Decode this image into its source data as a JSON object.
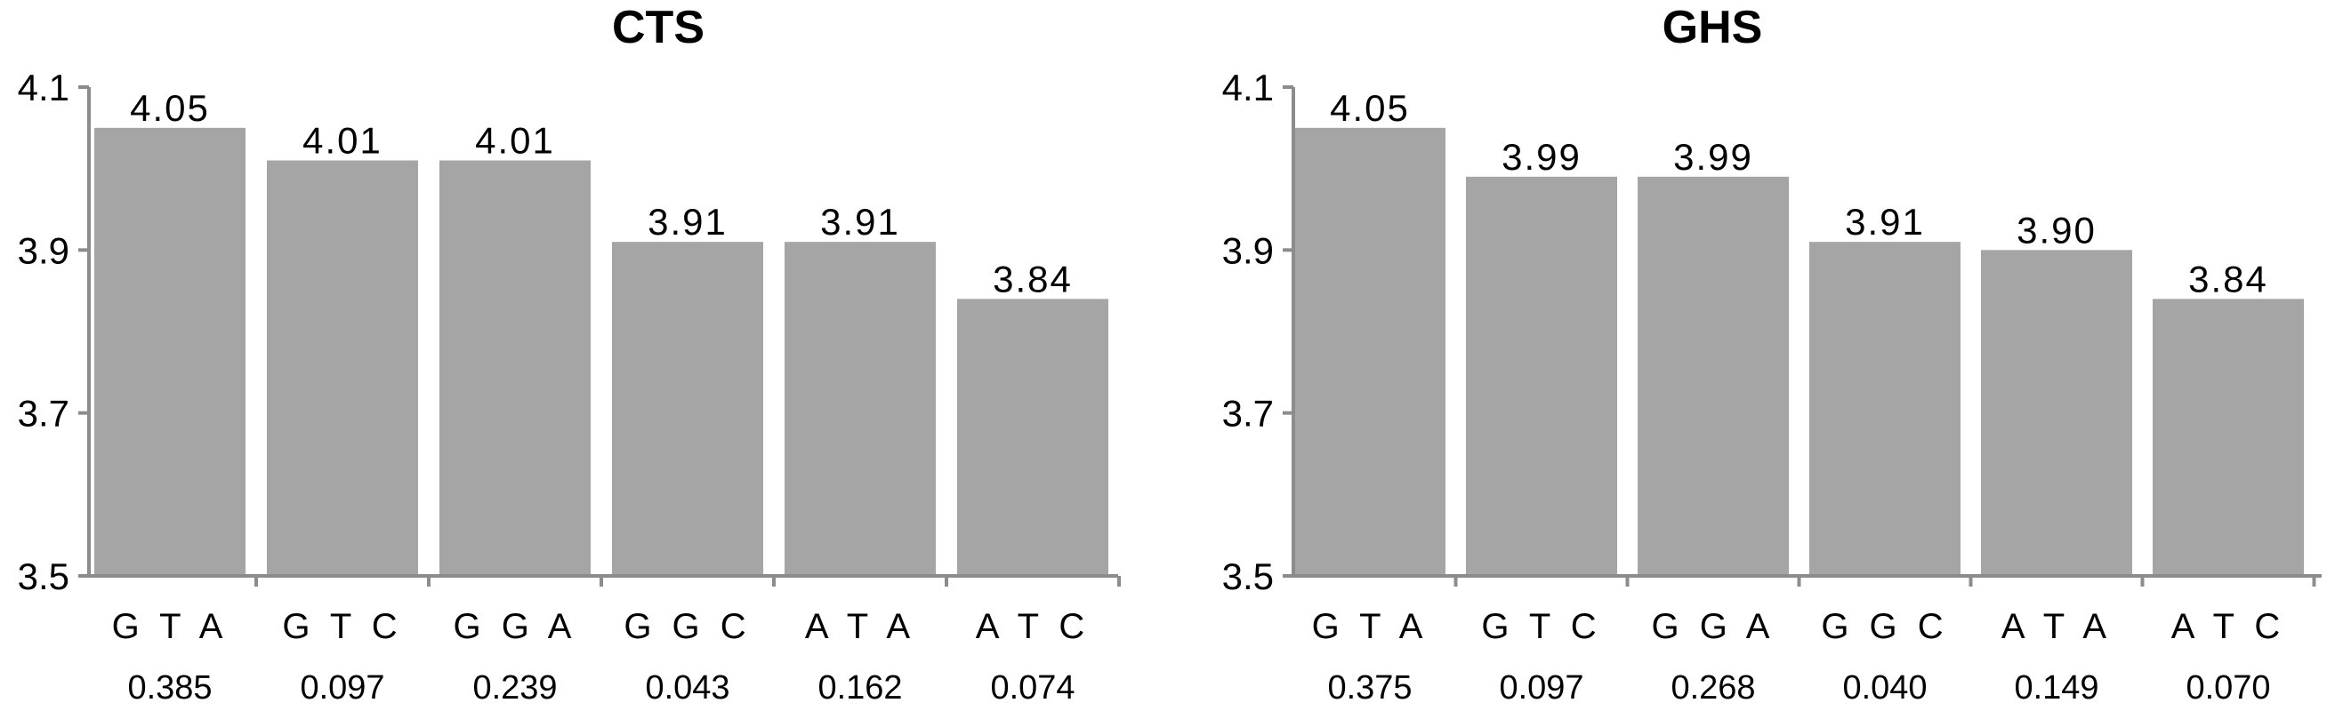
{
  "colors": {
    "bar": "#a5a5a5",
    "axis": "#8c8c8c",
    "text": "#000000"
  },
  "chart_data": [
    {
      "type": "bar",
      "title": "CTS",
      "xlabel": "",
      "ylabel": "",
      "ylim": [
        3.5,
        4.1
      ],
      "yticks": [
        "3.5",
        "3.7",
        "3.9",
        "4.1"
      ],
      "grid": false,
      "categories": [
        "GTA",
        "GTC",
        "GGA",
        "GGC",
        "ATA",
        "ATC"
      ],
      "category_display": [
        "G T A",
        "G T C",
        "G G A",
        "G G C",
        "A T A",
        "A T C"
      ],
      "values": [
        4.05,
        4.01,
        4.01,
        3.91,
        3.91,
        3.84
      ],
      "value_labels": [
        "4.05",
        "4.01",
        "4.01",
        "3.91",
        "3.91",
        "3.84"
      ],
      "sub_labels": [
        "0.385",
        "0.097",
        "0.239",
        "0.043",
        "0.162",
        "0.074"
      ]
    },
    {
      "type": "bar",
      "title": "GHS",
      "xlabel": "",
      "ylabel": "",
      "ylim": [
        3.5,
        4.1
      ],
      "yticks": [
        "3.5",
        "3.7",
        "3.9",
        "4.1"
      ],
      "grid": false,
      "categories": [
        "GTA",
        "GTC",
        "GGA",
        "GGC",
        "ATA",
        "ATC"
      ],
      "category_display": [
        "G T A",
        "G T C",
        "G G A",
        "G G C",
        "A T A",
        "A T C"
      ],
      "values": [
        4.05,
        3.99,
        3.99,
        3.91,
        3.9,
        3.84
      ],
      "value_labels": [
        "4.05",
        "3.99",
        "3.99",
        "3.91",
        "3.90",
        "3.84"
      ],
      "sub_labels": [
        "0.375",
        "0.097",
        "0.268",
        "0.040",
        "0.149",
        "0.070"
      ]
    }
  ]
}
